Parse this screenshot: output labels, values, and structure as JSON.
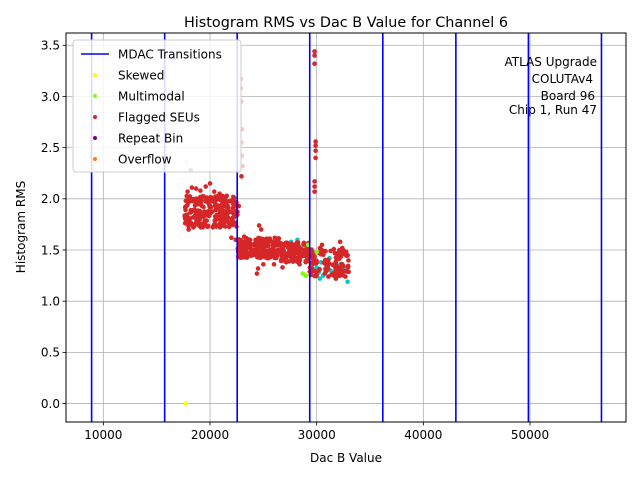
{
  "chart_data": {
    "type": "scatter",
    "title": "Histogram RMS vs Dac B Value for Channel 6",
    "xlabel": "Dac B Value",
    "ylabel": "Histogram RMS",
    "xlim": [
      6500,
      59000
    ],
    "ylim": [
      -0.18,
      3.62
    ],
    "xticks": [
      10000,
      20000,
      30000,
      40000,
      50000
    ],
    "xtick_labels": [
      "10000",
      "20000",
      "30000",
      "40000",
      "50000"
    ],
    "yticks": [
      0.0,
      0.5,
      1.0,
      1.5,
      2.0,
      2.5,
      3.0,
      3.5
    ],
    "ytick_labels": [
      "0.0",
      "0.5",
      "1.0",
      "1.5",
      "2.0",
      "2.5",
      "3.0",
      "3.5"
    ],
    "grid": true,
    "legend_position": "top-left",
    "annotation": [
      "ATLAS Upgrade",
      "COLUTAv4",
      "Board 96",
      "Chip 1, Run 47"
    ],
    "mdac_transitions": {
      "name": "MDAC Transitions",
      "color": "#0000ff",
      "x": [
        8900,
        15750,
        22550,
        29350,
        36200,
        43050,
        49850,
        56700
      ]
    },
    "legend": [
      {
        "name": "MDAC Transitions",
        "kind": "line",
        "color": "#0000ff"
      },
      {
        "name": "Skewed",
        "kind": "marker",
        "color": "#ffff00"
      },
      {
        "name": "Multimodal",
        "kind": "marker",
        "color": "#7fff00"
      },
      {
        "name": "Flagged SEUs",
        "kind": "marker",
        "color": "#d62728"
      },
      {
        "name": "Repeat Bin",
        "kind": "marker",
        "color": "#800080"
      },
      {
        "name": "Overflow",
        "kind": "marker",
        "color": "#ff7f0e"
      }
    ],
    "series": [
      {
        "color": "#00cccc",
        "points": [
          [
            27600,
            1.58
          ],
          [
            27900,
            1.55
          ],
          [
            28200,
            1.6
          ],
          [
            28500,
            1.52
          ],
          [
            28800,
            1.57
          ],
          [
            29100,
            1.54
          ],
          [
            29400,
            1.5
          ],
          [
            29700,
            1.46
          ],
          [
            30000,
            1.33
          ],
          [
            30200,
            1.28
          ],
          [
            30400,
            1.38
          ],
          [
            30600,
            1.25
          ],
          [
            30800,
            1.31
          ],
          [
            31000,
            1.35
          ],
          [
            31300,
            1.3
          ],
          [
            31600,
            1.27
          ],
          [
            31900,
            1.33
          ],
          [
            32200,
            1.36
          ],
          [
            32500,
            1.3
          ],
          [
            32800,
            1.32
          ],
          [
            32900,
            1.19
          ],
          [
            28000,
            1.42
          ],
          [
            28400,
            1.47
          ],
          [
            29000,
            1.44
          ],
          [
            29800,
            1.4
          ],
          [
            30300,
            1.22
          ],
          [
            31200,
            1.42
          ],
          [
            32600,
            1.25
          ]
        ]
      },
      {
        "color": "#f5c9c0",
        "points": [
          [
            22900,
            3.17
          ],
          [
            22900,
            3.08
          ],
          [
            22950,
            2.95
          ],
          [
            23000,
            2.68
          ],
          [
            22950,
            2.55
          ],
          [
            23000,
            2.42
          ],
          [
            17800,
            2.36
          ],
          [
            23050,
            2.32
          ]
        ]
      },
      {
        "name": "Flagged SEUs",
        "color": "#d62728",
        "clusters": [
          {
            "x": [
              17600,
              22600
            ],
            "y": [
              1.72,
              2.03
            ],
            "count": 260
          },
          {
            "x": [
              22600,
              26500
            ],
            "y": [
              1.42,
              1.62
            ],
            "count": 220
          },
          {
            "x": [
              26500,
              29300
            ],
            "y": [
              1.38,
              1.58
            ],
            "count": 130
          },
          {
            "x": [
              29300,
              33000
            ],
            "y": [
              1.24,
              1.52
            ],
            "count": 110
          }
        ],
        "points": [
          [
            29800,
            3.44
          ],
          [
            29800,
            3.4
          ],
          [
            29800,
            3.32
          ],
          [
            29900,
            2.56
          ],
          [
            29900,
            2.52
          ],
          [
            29900,
            2.47
          ],
          [
            29900,
            2.4
          ],
          [
            29800,
            2.17
          ],
          [
            29800,
            2.12
          ],
          [
            29800,
            2.07
          ],
          [
            22950,
            2.22
          ],
          [
            18200,
            2.28
          ],
          [
            17900,
            2.07
          ],
          [
            18300,
            2.11
          ],
          [
            18700,
            2.1
          ],
          [
            19100,
            2.08
          ],
          [
            19600,
            2.12
          ],
          [
            20000,
            2.15
          ],
          [
            20400,
            2.07
          ],
          [
            20900,
            2.05
          ],
          [
            21500,
            2.02
          ],
          [
            22700,
            1.93
          ],
          [
            23200,
            1.63
          ],
          [
            17800,
            1.76
          ],
          [
            18000,
            1.7
          ],
          [
            22000,
            1.62
          ],
          [
            22400,
            1.6
          ],
          [
            24600,
            1.74
          ],
          [
            24800,
            1.7
          ],
          [
            25000,
            1.36
          ],
          [
            24500,
            1.32
          ],
          [
            24400,
            1.27
          ],
          [
            26000,
            1.36
          ],
          [
            26800,
            1.33
          ],
          [
            28400,
            1.36
          ],
          [
            29300,
            1.46
          ],
          [
            30500,
            1.55
          ],
          [
            32200,
            1.58
          ],
          [
            32400,
            1.52
          ],
          [
            31400,
            1.26
          ],
          [
            31800,
            1.22
          ],
          [
            32700,
            1.24
          ]
        ]
      },
      {
        "name": "Multimodal",
        "color": "#7fff00",
        "points": [
          [
            28700,
            1.27
          ],
          [
            29000,
            1.25
          ],
          [
            30000,
            1.48
          ],
          [
            29200,
            1.55
          ]
        ]
      },
      {
        "name": "Skewed",
        "color": "#ffff00",
        "points": [
          [
            17750,
            0.0
          ]
        ]
      }
    ]
  }
}
